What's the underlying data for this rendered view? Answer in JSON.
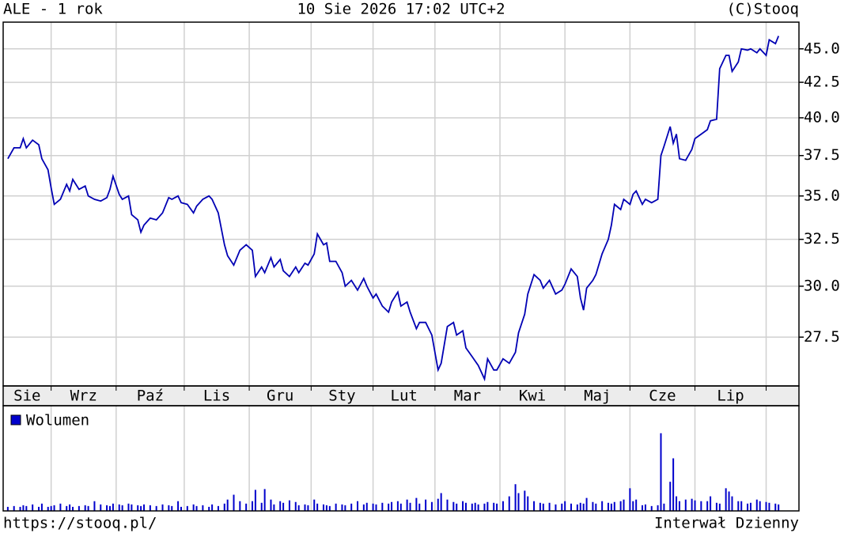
{
  "header": {
    "left": "ALE - 1 rok",
    "center": "10 Sie 2026 17:02 UTC+2",
    "right": "(C)Stooq"
  },
  "footer": {
    "left": "https://stooq.pl/",
    "right": "Interwał Dzienny"
  },
  "chart_data": [
    {
      "type": "line",
      "color": "#0000b4",
      "log_scale": true,
      "grid": true,
      "xlim": [
        -1.5,
        255.6
      ],
      "xticks": [
        14,
        35,
        57,
        78,
        98,
        118,
        138,
        159,
        180,
        201,
        222,
        245
      ],
      "months": [
        "Sie",
        "Wrz",
        "Paź",
        "Lis",
        "Gru",
        "Sty",
        "Lut",
        "Mar",
        "Kwi",
        "Maj",
        "Cze",
        "Lip"
      ],
      "ylim": [
        25.3,
        47.1
      ],
      "yticks": [
        {
          "value": 27.5,
          "label": "27.5"
        },
        {
          "value": 30,
          "label": "30.0"
        },
        {
          "value": 32.5,
          "label": "32.5"
        },
        {
          "value": 35,
          "label": "35.0"
        },
        {
          "value": 37.5,
          "label": "37.5"
        },
        {
          "value": 40,
          "label": "40.0"
        },
        {
          "value": 42.5,
          "label": "42.5"
        },
        {
          "value": 45,
          "label": "45.0"
        }
      ],
      "x": [
        0,
        2,
        4,
        5,
        6,
        8,
        10,
        11,
        13,
        14,
        15,
        17,
        19,
        20,
        21,
        23,
        25,
        26,
        28,
        30,
        32,
        33,
        34,
        36,
        37,
        39,
        40,
        42,
        43,
        44,
        46,
        48,
        50,
        52,
        53,
        55,
        56,
        58,
        60,
        61,
        63,
        65,
        66,
        68,
        70,
        71,
        73,
        75,
        77,
        79,
        80,
        82,
        83,
        85,
        86,
        88,
        89,
        91,
        93,
        94,
        96,
        97,
        99,
        100,
        102,
        103,
        104,
        106,
        108,
        109,
        111,
        113,
        115,
        116,
        118,
        119,
        121,
        123,
        124,
        126,
        127,
        129,
        130,
        132,
        133,
        135,
        137,
        139,
        140,
        142,
        144,
        145,
        147,
        148,
        150,
        151,
        152,
        154,
        155,
        157,
        158,
        160,
        162,
        164,
        165,
        167,
        168,
        170,
        172,
        173,
        175,
        177,
        179,
        180,
        182,
        184,
        185,
        186,
        187,
        189,
        190,
        192,
        194,
        195,
        196,
        198,
        199,
        201,
        202,
        203,
        205,
        206,
        208,
        210,
        211,
        212,
        214,
        215,
        216,
        217,
        219,
        221,
        222,
        224,
        226,
        227,
        229,
        230,
        232,
        233,
        234,
        236,
        237,
        239,
        240,
        242,
        243,
        245,
        246,
        248,
        249
      ],
      "values": [
        37.3,
        38.0,
        38.0,
        38.6,
        38.0,
        38.5,
        38.2,
        37.3,
        36.6,
        35.5,
        34.5,
        34.8,
        35.7,
        35.3,
        36.0,
        35.4,
        35.6,
        35.0,
        34.8,
        34.7,
        34.9,
        35.4,
        36.2,
        35.1,
        34.8,
        35.0,
        33.9,
        33.6,
        32.9,
        33.3,
        33.7,
        33.6,
        34.0,
        34.9,
        34.8,
        35.0,
        34.6,
        34.5,
        34.0,
        34.4,
        34.8,
        35.0,
        34.8,
        34.0,
        32.2,
        31.6,
        31.1,
        31.9,
        32.2,
        31.9,
        30.5,
        31.0,
        30.7,
        31.5,
        31.0,
        31.4,
        30.8,
        30.5,
        31.0,
        30.7,
        31.2,
        31.1,
        31.7,
        32.8,
        32.2,
        32.3,
        31.3,
        31.3,
        30.7,
        30.0,
        30.3,
        29.8,
        30.4,
        30.0,
        29.4,
        29.6,
        29.0,
        28.7,
        29.2,
        29.7,
        29.0,
        29.2,
        28.7,
        27.9,
        28.2,
        28.2,
        27.6,
        26.0,
        26.3,
        28.0,
        28.2,
        27.6,
        27.8,
        27.0,
        26.6,
        26.4,
        26.2,
        25.6,
        26.5,
        26.0,
        26.0,
        26.5,
        26.3,
        26.8,
        27.7,
        28.6,
        29.6,
        30.6,
        30.3,
        29.9,
        30.3,
        29.6,
        29.8,
        30.1,
        30.9,
        30.5,
        29.4,
        28.8,
        29.9,
        30.3,
        30.6,
        31.7,
        32.5,
        33.3,
        34.5,
        34.2,
        34.8,
        34.5,
        35.1,
        35.3,
        34.5,
        34.8,
        34.6,
        34.8,
        37.5,
        38.1,
        39.4,
        38.3,
        38.9,
        37.3,
        37.2,
        37.9,
        38.6,
        38.9,
        39.2,
        39.8,
        39.9,
        43.5,
        44.5,
        44.5,
        43.3,
        44.0,
        45.0,
        44.9,
        45.0,
        44.7,
        45.0,
        44.5,
        45.7,
        45.4,
        46.0
      ]
    },
    {
      "type": "bar",
      "color": "#0000cc",
      "ylim": [
        0,
        130
      ],
      "series": [
        {
          "name": "Wolumen",
          "color": "#0000cc",
          "x": [
            0,
            2,
            4,
            5,
            6,
            8,
            10,
            11,
            13,
            14,
            15,
            17,
            19,
            20,
            21,
            23,
            25,
            26,
            28,
            30,
            32,
            33,
            34,
            36,
            37,
            39,
            40,
            42,
            43,
            44,
            46,
            48,
            50,
            52,
            53,
            55,
            56,
            58,
            60,
            61,
            63,
            65,
            66,
            68,
            70,
            71,
            73,
            75,
            77,
            79,
            80,
            82,
            83,
            85,
            86,
            88,
            89,
            91,
            93,
            94,
            96,
            97,
            99,
            100,
            102,
            103,
            104,
            106,
            108,
            109,
            111,
            113,
            115,
            116,
            118,
            119,
            121,
            123,
            124,
            126,
            127,
            129,
            130,
            132,
            133,
            135,
            137,
            139,
            140,
            142,
            144,
            145,
            147,
            148,
            150,
            151,
            152,
            154,
            155,
            157,
            158,
            160,
            162,
            164,
            165,
            167,
            168,
            170,
            172,
            173,
            175,
            177,
            179,
            180,
            182,
            184,
            185,
            186,
            187,
            189,
            190,
            192,
            194,
            195,
            196,
            198,
            199,
            201,
            202,
            203,
            205,
            206,
            208,
            210,
            211,
            212,
            214,
            215,
            216,
            217,
            219,
            221,
            222,
            224,
            226,
            227,
            229,
            230,
            232,
            233,
            234,
            236,
            237,
            239,
            240,
            242,
            243,
            245,
            246,
            248,
            249
          ],
          "values": [
            5,
            6,
            5,
            7,
            6,
            8,
            5,
            9,
            5,
            6,
            7,
            9,
            6,
            8,
            5,
            6,
            7,
            6,
            12,
            8,
            7,
            6,
            9,
            8,
            7,
            9,
            8,
            7,
            6,
            8,
            7,
            6,
            8,
            7,
            6,
            12,
            5,
            6,
            8,
            6,
            7,
            5,
            8,
            6,
            9,
            14,
            20,
            12,
            9,
            12,
            26,
            10,
            27,
            14,
            8,
            12,
            10,
            13,
            11,
            7,
            8,
            7,
            14,
            9,
            8,
            7,
            6,
            9,
            8,
            7,
            9,
            12,
            8,
            10,
            9,
            8,
            10,
            9,
            11,
            12,
            9,
            14,
            10,
            16,
            9,
            14,
            11,
            15,
            22,
            14,
            11,
            9,
            12,
            10,
            9,
            10,
            8,
            9,
            11,
            10,
            9,
            12,
            18,
            33,
            22,
            25,
            18,
            12,
            10,
            9,
            10,
            8,
            9,
            12,
            9,
            8,
            10,
            9,
            16,
            11,
            9,
            12,
            10,
            9,
            11,
            12,
            14,
            28,
            12,
            14,
            7,
            8,
            6,
            7,
            96,
            9,
            36,
            65,
            18,
            12,
            14,
            15,
            13,
            12,
            12,
            18,
            10,
            9,
            28,
            24,
            18,
            12,
            12,
            9,
            10,
            14,
            12,
            11,
            10,
            9,
            8
          ]
        }
      ]
    }
  ]
}
